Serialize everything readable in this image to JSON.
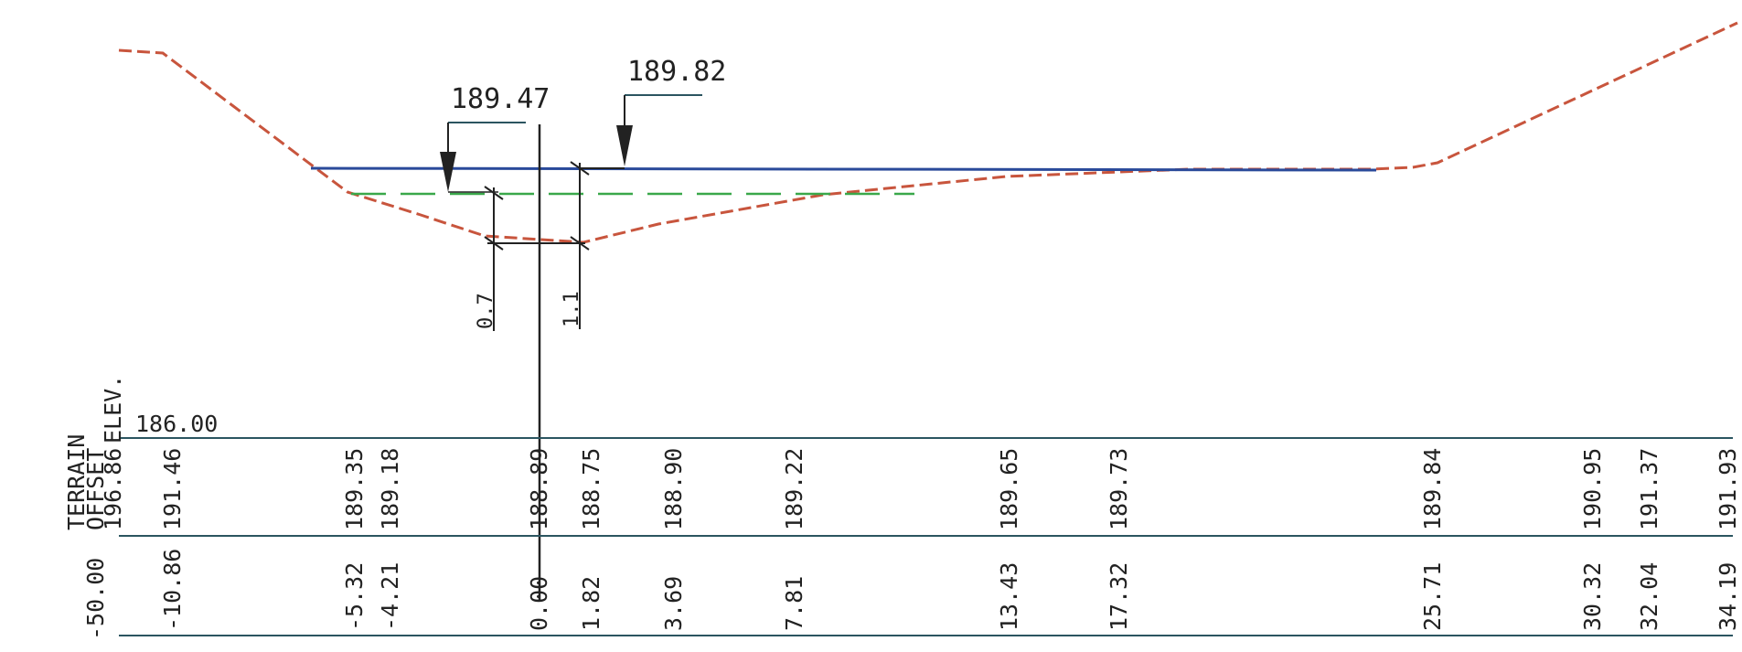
{
  "water_levels": {
    "left_label": "189.47",
    "right_label": "189.82"
  },
  "depths": {
    "left": "0.7",
    "right": "1.1"
  },
  "datum": "186.00",
  "row_headers": {
    "header_terrain": "TERRAIN",
    "header_offset": "OFFSET",
    "header_elev": "ELEV.",
    "header_elev_value": "196.86",
    "header_offset_value": "-50.00"
  },
  "stations": [
    {
      "elev": "191.46",
      "offset": "-10.86"
    },
    {
      "elev": "189.35",
      "offset": "-5.32"
    },
    {
      "elev": "189.18",
      "offset": "-4.21"
    },
    {
      "elev": "188.89",
      "offset": "0.00"
    },
    {
      "elev": "188.75",
      "offset": "1.82"
    },
    {
      "elev": "188.90",
      "offset": "3.69"
    },
    {
      "elev": "189.22",
      "offset": "7.81"
    },
    {
      "elev": "189.65",
      "offset": "13.43"
    },
    {
      "elev": "189.73",
      "offset": "17.32"
    },
    {
      "elev": "189.84",
      "offset": "25.71"
    },
    {
      "elev": "190.95",
      "offset": "30.32"
    },
    {
      "elev": "191.37",
      "offset": "32.04"
    },
    {
      "elev": "191.93",
      "offset": "34.19"
    }
  ],
  "colors": {
    "terrain": "#c8553d",
    "water_surface": "#2a4a9a",
    "water_level_low": "#3aa84a",
    "table_lines": "#2b5560",
    "ink": "#222222"
  }
}
